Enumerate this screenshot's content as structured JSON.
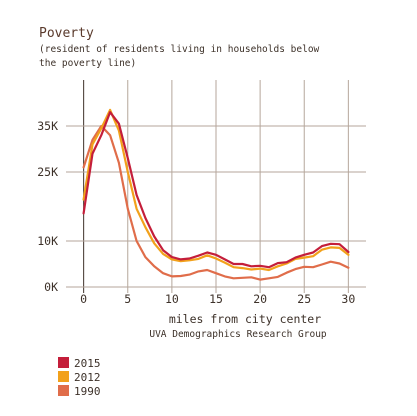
{
  "chart_data": {
    "type": "line",
    "title": "Poverty",
    "subtitle_lines": [
      "(resident of residents living in households below",
      "the poverty line)"
    ],
    "xlabel": "miles from city center",
    "credit": "UVA Demographics Research Group",
    "x_ticks": [
      0,
      5,
      10,
      15,
      20,
      25,
      30
    ],
    "y_ticks": [
      0,
      10000,
      25000,
      35000
    ],
    "y_tick_labels": [
      "0K",
      "10K",
      "25K",
      "35K"
    ],
    "xlim": [
      -2,
      32
    ],
    "ylim": [
      0,
      45000
    ],
    "grid": true,
    "legend_position": "bottom-left",
    "series": [
      {
        "name": "2015",
        "color": "#c41e3a",
        "x": [
          0,
          1,
          2,
          3,
          4,
          5,
          6,
          7,
          8,
          9,
          10,
          11,
          12,
          13,
          14,
          15,
          16,
          17,
          18,
          19,
          20,
          21,
          22,
          23,
          24,
          25,
          26,
          27,
          28,
          29,
          30
        ],
        "values": [
          16000,
          29000,
          33000,
          38000,
          35500,
          28000,
          20000,
          15000,
          11000,
          8000,
          6500,
          6000,
          6200,
          6800,
          7500,
          7000,
          6000,
          5000,
          5000,
          4500,
          4600,
          4300,
          5200,
          5400,
          6400,
          7000,
          7500,
          8900,
          9400,
          9300,
          7600
        ]
      },
      {
        "name": "2012",
        "color": "#f2a11b",
        "x": [
          0,
          1,
          2,
          3,
          4,
          5,
          6,
          7,
          8,
          9,
          10,
          11,
          12,
          13,
          14,
          15,
          16,
          17,
          18,
          19,
          20,
          21,
          22,
          23,
          24,
          25,
          26,
          27,
          28,
          29,
          30
        ],
        "values": [
          19000,
          31000,
          34500,
          38500,
          34000,
          25000,
          17000,
          13000,
          9500,
          7200,
          6000,
          5600,
          5800,
          6100,
          6900,
          6200,
          5300,
          4300,
          4100,
          3800,
          4000,
          3700,
          4500,
          5100,
          6100,
          6400,
          6700,
          8100,
          8600,
          8500,
          7000
        ]
      },
      {
        "name": "1990",
        "color": "#e06d4a",
        "x": [
          0,
          1,
          2,
          3,
          4,
          5,
          6,
          7,
          8,
          9,
          10,
          11,
          12,
          13,
          14,
          15,
          16,
          17,
          18,
          19,
          20,
          21,
          22,
          23,
          24,
          25,
          26,
          27,
          28,
          29,
          30
        ],
        "values": [
          26000,
          32000,
          35000,
          33000,
          27000,
          17000,
          10000,
          6500,
          4500,
          3000,
          2300,
          2400,
          2700,
          3400,
          3700,
          3000,
          2300,
          1900,
          2000,
          2100,
          1600,
          1900,
          2200,
          3100,
          3900,
          4400,
          4300,
          4900,
          5500,
          5100,
          4200
        ]
      }
    ]
  }
}
